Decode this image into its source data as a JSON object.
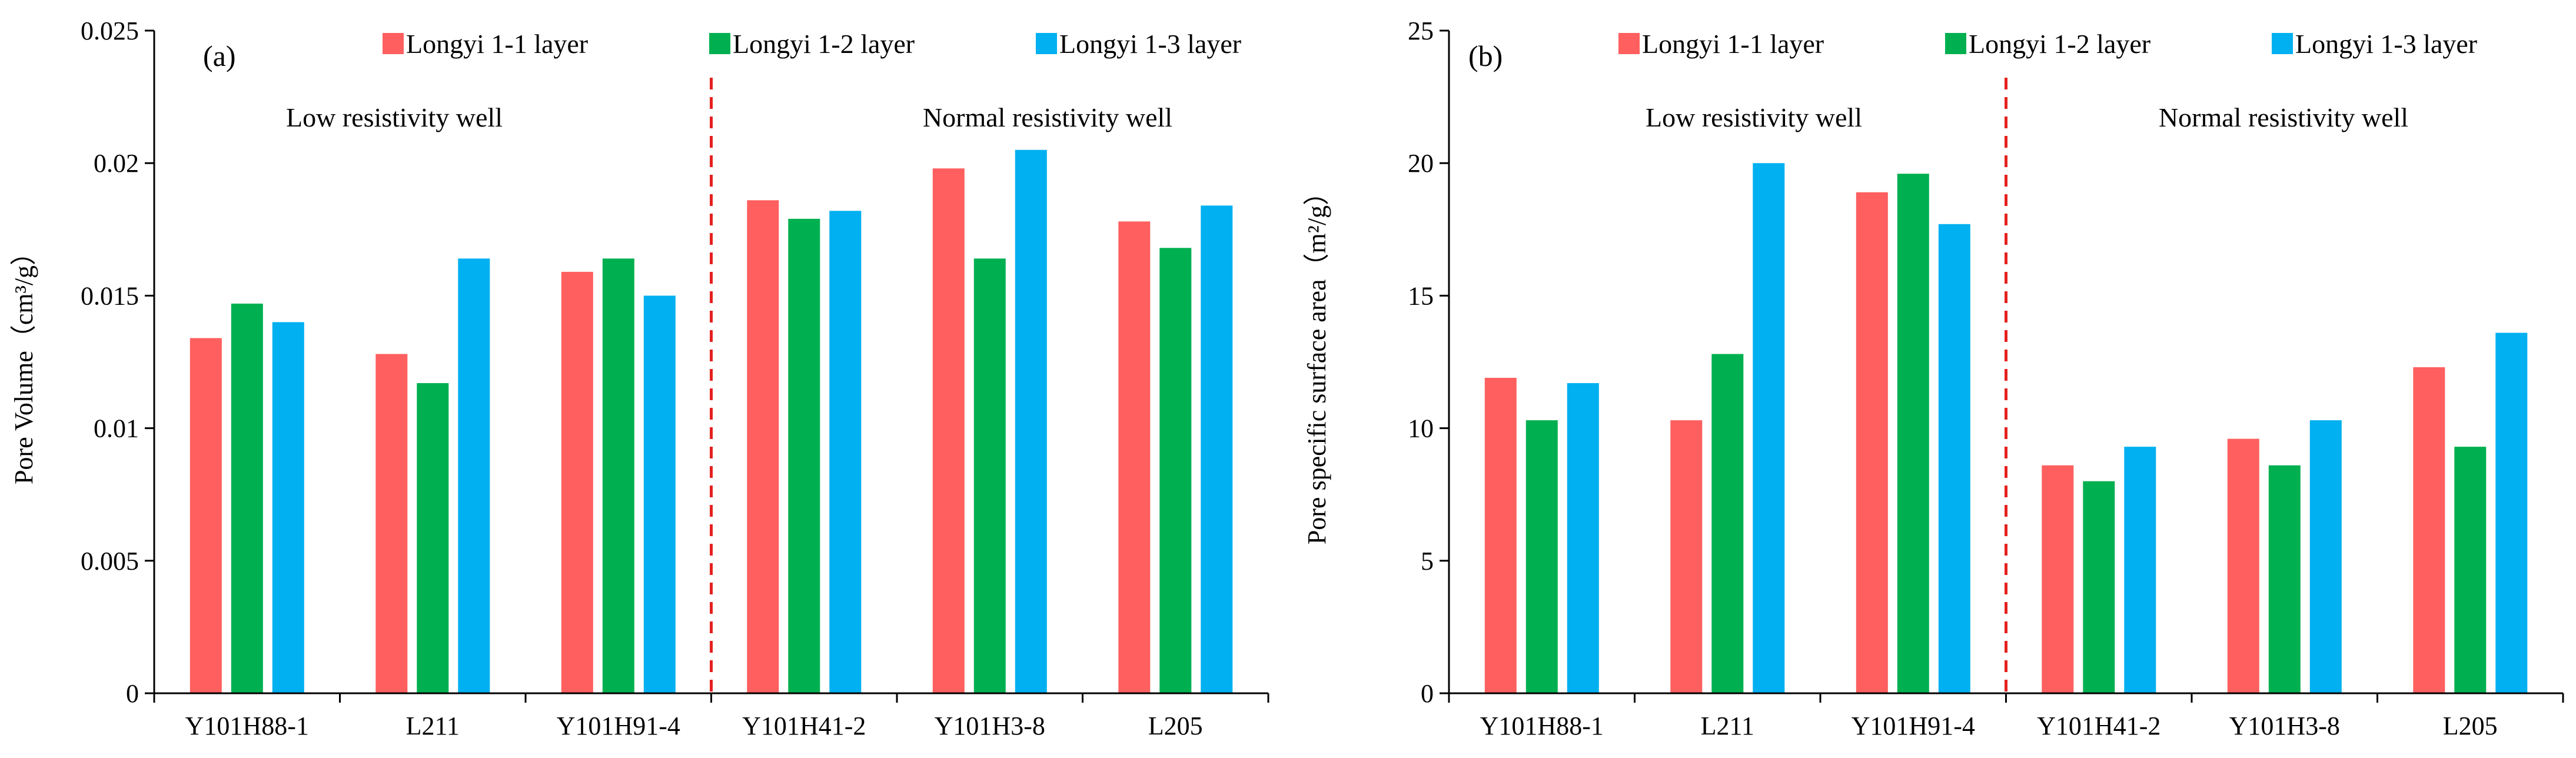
{
  "colors": {
    "series": [
      "#FF5F5F",
      "#00B050",
      "#00B0F0"
    ],
    "axis": "#000000",
    "divider": "#E4211E"
  },
  "chart_data": [
    {
      "type": "bar",
      "panel_label": "(a)",
      "title": "",
      "xlabel": "",
      "ylabel": "Pore  Volume（cm³/g）",
      "ylim": [
        0,
        0.025
      ],
      "yticks": [
        0,
        0.005,
        0.01,
        0.015,
        0.02,
        0.025
      ],
      "ytick_labels": [
        "0",
        "0.005",
        "0.01",
        "0.015",
        "0.02",
        "0.025"
      ],
      "categories": [
        "Y101H88-1",
        "L211",
        "Y101H91-4",
        "Y101H41-2",
        "Y101H3-8",
        "L205"
      ],
      "series": [
        {
          "name": "Longyi 1-1 layer",
          "values": [
            0.0134,
            0.0128,
            0.0159,
            0.0186,
            0.0198,
            0.0178
          ]
        },
        {
          "name": "Longyi 1-2 layer",
          "values": [
            0.0147,
            0.0117,
            0.0164,
            0.0179,
            0.0164,
            0.0168
          ]
        },
        {
          "name": "Longyi 1-3 layer",
          "values": [
            0.014,
            0.0164,
            0.015,
            0.0182,
            0.0205,
            0.0184
          ]
        }
      ],
      "annotations": [
        "Low resistivity well",
        "Normal resistivity well"
      ],
      "legend_position": "top"
    },
    {
      "type": "bar",
      "panel_label": "(b)",
      "title": "",
      "xlabel": "",
      "ylabel": "Pore specific surface area（m²/g）",
      "ylim": [
        0,
        25
      ],
      "yticks": [
        0,
        5,
        10,
        15,
        20,
        25
      ],
      "ytick_labels": [
        "0",
        "5",
        "10",
        "15",
        "20",
        "25"
      ],
      "categories": [
        "Y101H88-1",
        "L211",
        "Y101H91-4",
        "Y101H41-2",
        "Y101H3-8",
        "L205"
      ],
      "series": [
        {
          "name": "Longyi 1-1 layer",
          "values": [
            11.9,
            10.3,
            18.9,
            8.6,
            9.6,
            12.3
          ]
        },
        {
          "name": "Longyi 1-2 layer",
          "values": [
            10.3,
            12.8,
            19.6,
            8.0,
            8.6,
            9.3
          ]
        },
        {
          "name": "Longyi 1-3 layer",
          "values": [
            11.7,
            20.0,
            17.7,
            9.3,
            10.3,
            13.6
          ]
        }
      ],
      "annotations": [
        "Low resistivity well",
        "Normal resistivity well"
      ],
      "legend_position": "top"
    }
  ]
}
